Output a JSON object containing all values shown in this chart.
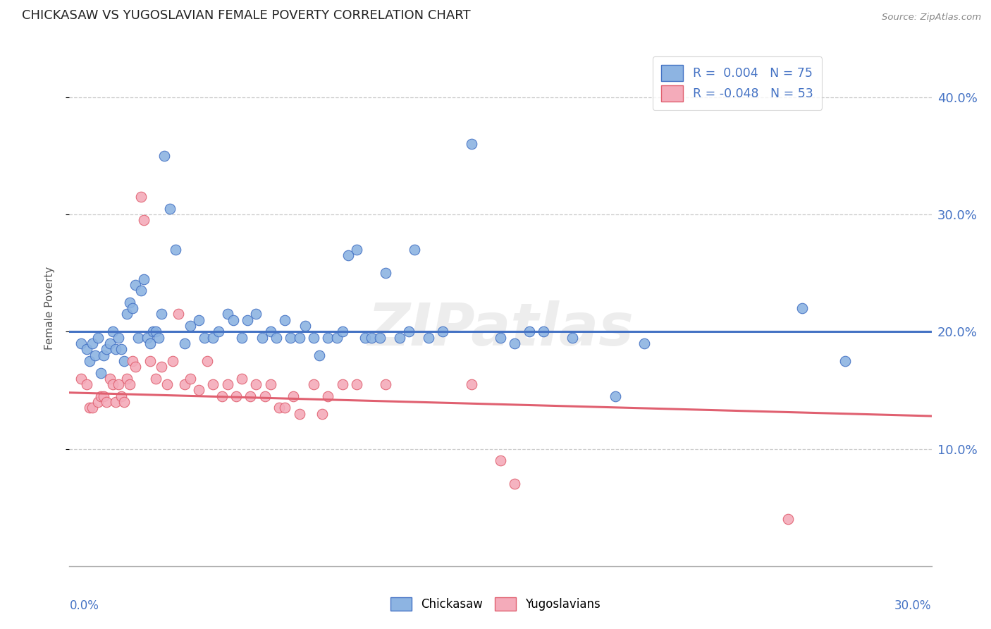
{
  "title": "CHICKASAW VS YUGOSLAVIAN FEMALE POVERTY CORRELATION CHART",
  "source": "Source: ZipAtlas.com",
  "ylabel": "Female Poverty",
  "xlim": [
    0.0,
    0.3
  ],
  "ylim": [
    0.0,
    0.44
  ],
  "ytick_vals": [
    0.1,
    0.2,
    0.3,
    0.4
  ],
  "ytick_labels": [
    "10.0%",
    "20.0%",
    "30.0%",
    "40.0%"
  ],
  "legend_line1": "R =  0.004   N = 75",
  "legend_line2": "R = -0.048   N = 53",
  "watermark": "ZIPatlas",
  "blue_fill": "#8DB4E2",
  "blue_edge": "#4472C4",
  "blue_line": "#4472C4",
  "pink_fill": "#F4ABBA",
  "pink_edge": "#E06070",
  "pink_line": "#E06070",
  "legend_text_color": "#4472C4",
  "axis_text_color": "#4472C4",
  "title_color": "#222222",
  "source_color": "#888888",
  "grid_color": "#CCCCCC",
  "spine_color": "#AAAAAA",
  "chickasaw_points": [
    [
      0.004,
      0.19
    ],
    [
      0.006,
      0.185
    ],
    [
      0.007,
      0.175
    ],
    [
      0.008,
      0.19
    ],
    [
      0.009,
      0.18
    ],
    [
      0.01,
      0.195
    ],
    [
      0.011,
      0.165
    ],
    [
      0.012,
      0.18
    ],
    [
      0.013,
      0.185
    ],
    [
      0.014,
      0.19
    ],
    [
      0.015,
      0.2
    ],
    [
      0.016,
      0.185
    ],
    [
      0.017,
      0.195
    ],
    [
      0.018,
      0.185
    ],
    [
      0.019,
      0.175
    ],
    [
      0.02,
      0.215
    ],
    [
      0.021,
      0.225
    ],
    [
      0.022,
      0.22
    ],
    [
      0.023,
      0.24
    ],
    [
      0.024,
      0.195
    ],
    [
      0.025,
      0.235
    ],
    [
      0.026,
      0.245
    ],
    [
      0.027,
      0.195
    ],
    [
      0.028,
      0.19
    ],
    [
      0.029,
      0.2
    ],
    [
      0.03,
      0.2
    ],
    [
      0.031,
      0.195
    ],
    [
      0.032,
      0.215
    ],
    [
      0.033,
      0.35
    ],
    [
      0.035,
      0.305
    ],
    [
      0.037,
      0.27
    ],
    [
      0.04,
      0.19
    ],
    [
      0.042,
      0.205
    ],
    [
      0.045,
      0.21
    ],
    [
      0.047,
      0.195
    ],
    [
      0.05,
      0.195
    ],
    [
      0.052,
      0.2
    ],
    [
      0.055,
      0.215
    ],
    [
      0.057,
      0.21
    ],
    [
      0.06,
      0.195
    ],
    [
      0.062,
      0.21
    ],
    [
      0.065,
      0.215
    ],
    [
      0.067,
      0.195
    ],
    [
      0.07,
      0.2
    ],
    [
      0.072,
      0.195
    ],
    [
      0.075,
      0.21
    ],
    [
      0.077,
      0.195
    ],
    [
      0.08,
      0.195
    ],
    [
      0.082,
      0.205
    ],
    [
      0.085,
      0.195
    ],
    [
      0.087,
      0.18
    ],
    [
      0.09,
      0.195
    ],
    [
      0.093,
      0.195
    ],
    [
      0.095,
      0.2
    ],
    [
      0.097,
      0.265
    ],
    [
      0.1,
      0.27
    ],
    [
      0.103,
      0.195
    ],
    [
      0.105,
      0.195
    ],
    [
      0.108,
      0.195
    ],
    [
      0.11,
      0.25
    ],
    [
      0.115,
      0.195
    ],
    [
      0.118,
      0.2
    ],
    [
      0.12,
      0.27
    ],
    [
      0.125,
      0.195
    ],
    [
      0.13,
      0.2
    ],
    [
      0.14,
      0.36
    ],
    [
      0.15,
      0.195
    ],
    [
      0.155,
      0.19
    ],
    [
      0.16,
      0.2
    ],
    [
      0.165,
      0.2
    ],
    [
      0.175,
      0.195
    ],
    [
      0.19,
      0.145
    ],
    [
      0.2,
      0.19
    ],
    [
      0.255,
      0.22
    ],
    [
      0.27,
      0.175
    ]
  ],
  "yugoslavian_points": [
    [
      0.004,
      0.16
    ],
    [
      0.006,
      0.155
    ],
    [
      0.007,
      0.135
    ],
    [
      0.008,
      0.135
    ],
    [
      0.01,
      0.14
    ],
    [
      0.011,
      0.145
    ],
    [
      0.012,
      0.145
    ],
    [
      0.013,
      0.14
    ],
    [
      0.014,
      0.16
    ],
    [
      0.015,
      0.155
    ],
    [
      0.016,
      0.14
    ],
    [
      0.017,
      0.155
    ],
    [
      0.018,
      0.145
    ],
    [
      0.019,
      0.14
    ],
    [
      0.02,
      0.16
    ],
    [
      0.021,
      0.155
    ],
    [
      0.022,
      0.175
    ],
    [
      0.023,
      0.17
    ],
    [
      0.025,
      0.315
    ],
    [
      0.026,
      0.295
    ],
    [
      0.028,
      0.175
    ],
    [
      0.03,
      0.16
    ],
    [
      0.032,
      0.17
    ],
    [
      0.034,
      0.155
    ],
    [
      0.036,
      0.175
    ],
    [
      0.038,
      0.215
    ],
    [
      0.04,
      0.155
    ],
    [
      0.042,
      0.16
    ],
    [
      0.045,
      0.15
    ],
    [
      0.048,
      0.175
    ],
    [
      0.05,
      0.155
    ],
    [
      0.053,
      0.145
    ],
    [
      0.055,
      0.155
    ],
    [
      0.058,
      0.145
    ],
    [
      0.06,
      0.16
    ],
    [
      0.063,
      0.145
    ],
    [
      0.065,
      0.155
    ],
    [
      0.068,
      0.145
    ],
    [
      0.07,
      0.155
    ],
    [
      0.073,
      0.135
    ],
    [
      0.075,
      0.135
    ],
    [
      0.078,
      0.145
    ],
    [
      0.08,
      0.13
    ],
    [
      0.085,
      0.155
    ],
    [
      0.088,
      0.13
    ],
    [
      0.09,
      0.145
    ],
    [
      0.095,
      0.155
    ],
    [
      0.1,
      0.155
    ],
    [
      0.11,
      0.155
    ],
    [
      0.14,
      0.155
    ],
    [
      0.15,
      0.09
    ],
    [
      0.155,
      0.07
    ],
    [
      0.25,
      0.04
    ]
  ],
  "blue_trend": [
    0.2,
    0.2
  ],
  "pink_trend_start": 0.148,
  "pink_trend_end": 0.128
}
